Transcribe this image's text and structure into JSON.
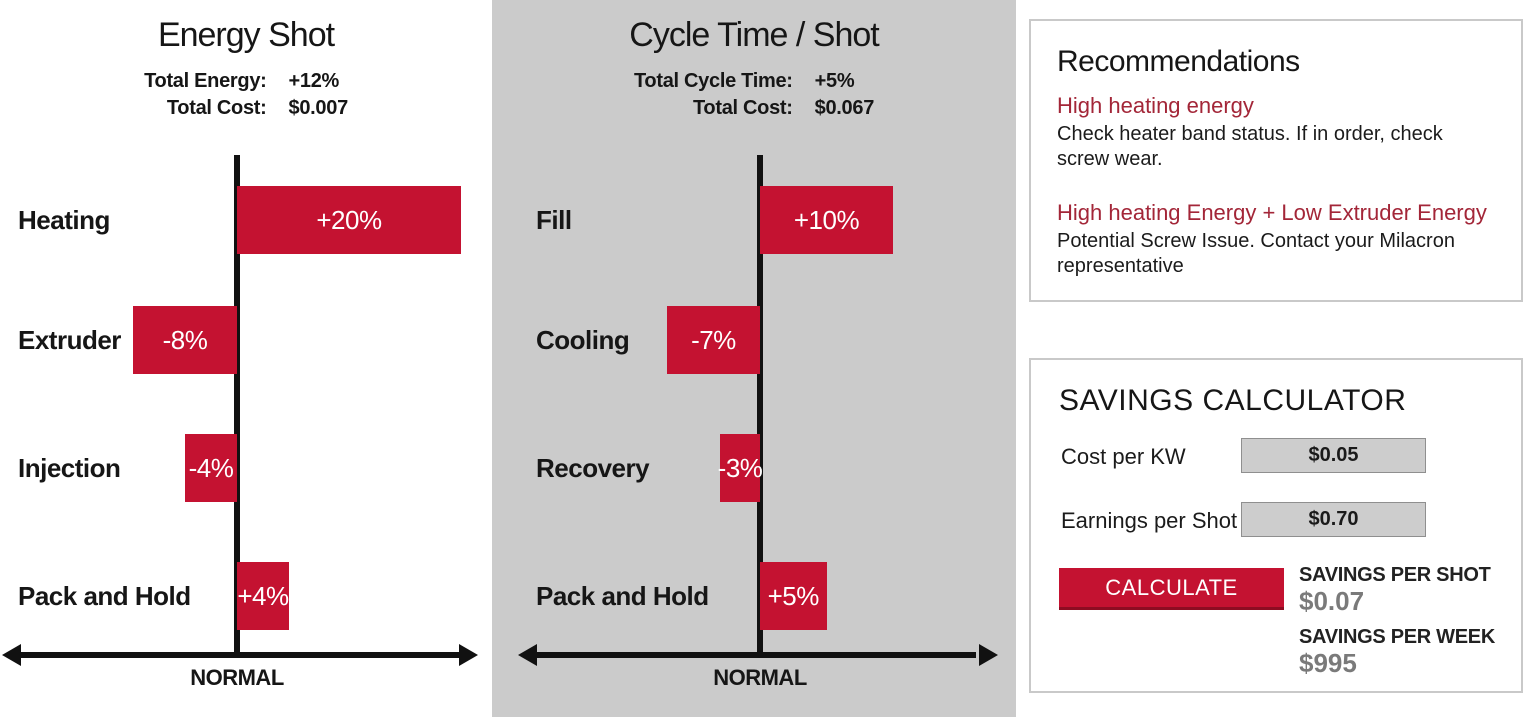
{
  "colors": {
    "bar_red": "#c41231",
    "heading_red": "#a32638",
    "panel_gray": "#cbcbcb",
    "muted_gray": "#7a7a7a",
    "box_border_gray": "#c9c9c9"
  },
  "chart_data": [
    {
      "type": "bar",
      "orientation": "horizontal",
      "title": "Energy Shot",
      "totals": [
        {
          "label": "Total Energy:",
          "value": "+12%"
        },
        {
          "label": "Total Cost:",
          "value": "$0.007"
        }
      ],
      "categories": [
        "Heating",
        "Extruder",
        "Injection",
        "Pack and Hold"
      ],
      "values": [
        20,
        -8,
        -4,
        4
      ],
      "value_labels": [
        "+20%",
        "-8%",
        "-4%",
        "+4%"
      ],
      "axis_label": "NORMAL",
      "xlim": [
        -20,
        20
      ],
      "baseline": "0% = NORMAL",
      "grid": false,
      "legend": false
    },
    {
      "type": "bar",
      "orientation": "horizontal",
      "title": "Cycle Time / Shot",
      "totals": [
        {
          "label": "Total Cycle Time:",
          "value": "+5%"
        },
        {
          "label": "Total Cost:",
          "value": "$0.067"
        }
      ],
      "categories": [
        "Fill",
        "Cooling",
        "Recovery",
        "Pack and Hold"
      ],
      "values": [
        10,
        -7,
        -3,
        5
      ],
      "value_labels": [
        "+10%",
        "-7%",
        "-3%",
        "+5%"
      ],
      "axis_label": "NORMAL",
      "xlim": [
        -10,
        10
      ],
      "baseline": "0% = NORMAL",
      "grid": false,
      "legend": false
    }
  ],
  "recommendations": {
    "title": "Recommendations",
    "items": [
      {
        "heading": "High heating energy",
        "body": "Check heater band status. If in order, check screw wear."
      },
      {
        "heading": "High heating Energy + Low Extruder Energy",
        "body": "Potential Screw Issue. Contact your Milacron representative"
      }
    ]
  },
  "savings_calculator": {
    "title": "SAVINGS CALCULATOR",
    "fields": [
      {
        "label": "Cost per KW",
        "value": "$0.05"
      },
      {
        "label": "Earnings per Shot",
        "value": "$0.70"
      }
    ],
    "button_label": "CALCULATE",
    "results": [
      {
        "label": "SAVINGS PER SHOT",
        "value": "$0.07"
      },
      {
        "label": "SAVINGS PER WEEK",
        "value": "$995"
      }
    ]
  }
}
